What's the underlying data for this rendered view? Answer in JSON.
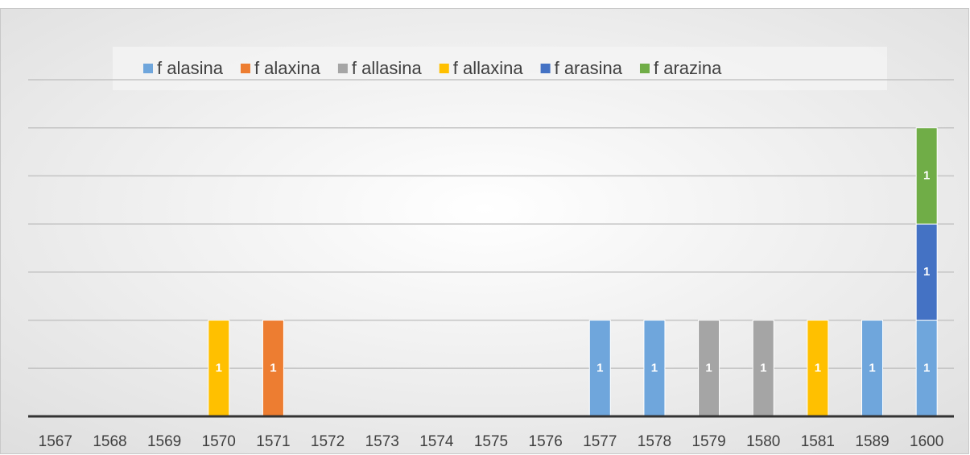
{
  "chart_data": {
    "type": "stacked_bar",
    "categories": [
      "1567",
      "1568",
      "1569",
      "1570",
      "1571",
      "1572",
      "1573",
      "1574",
      "1575",
      "1576",
      "1577",
      "1578",
      "1579",
      "1580",
      "1581",
      "1589",
      "1600"
    ],
    "series": [
      {
        "name": "f alasina",
        "color": "#6fa6dc",
        "values": [
          null,
          null,
          null,
          null,
          null,
          null,
          null,
          null,
          null,
          null,
          1,
          1,
          null,
          null,
          null,
          1,
          1
        ]
      },
      {
        "name": "f alaxina",
        "color": "#ed7d31",
        "values": [
          null,
          null,
          null,
          null,
          1,
          null,
          null,
          null,
          null,
          null,
          null,
          null,
          null,
          null,
          null,
          null,
          null
        ]
      },
      {
        "name": "f allasina",
        "color": "#a5a5a5",
        "values": [
          null,
          null,
          null,
          null,
          null,
          null,
          null,
          null,
          null,
          null,
          null,
          null,
          1,
          1,
          null,
          null,
          null
        ]
      },
      {
        "name": "f allaxina",
        "color": "#ffc000",
        "values": [
          null,
          null,
          null,
          1,
          null,
          null,
          null,
          null,
          null,
          null,
          null,
          null,
          null,
          null,
          1,
          null,
          null
        ]
      },
      {
        "name": "f arasina",
        "color": "#4472c4",
        "values": [
          null,
          null,
          null,
          null,
          null,
          null,
          null,
          null,
          null,
          null,
          null,
          null,
          null,
          null,
          null,
          null,
          1
        ]
      },
      {
        "name": "f arazina",
        "color": "#70ad47",
        "values": [
          null,
          null,
          null,
          null,
          null,
          null,
          null,
          null,
          null,
          null,
          null,
          null,
          null,
          null,
          null,
          null,
          1
        ]
      }
    ],
    "ylim": [
      0,
      3.5
    ],
    "yticks": [
      0,
      0.5,
      1,
      1.5,
      2,
      2.5,
      3,
      3.5
    ],
    "grid": true,
    "legend": "top"
  }
}
